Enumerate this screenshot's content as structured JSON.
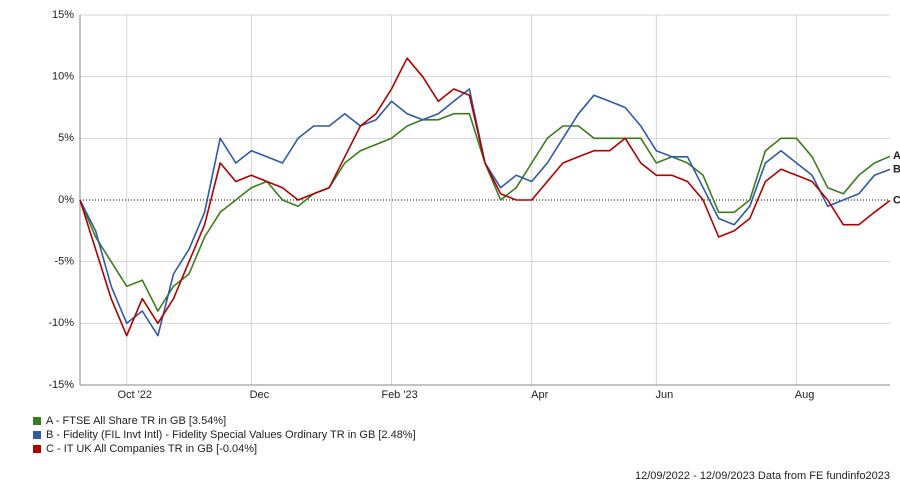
{
  "chart_data": {
    "type": "line",
    "categories": [
      null,
      null,
      null,
      "Oct '22",
      null,
      null,
      null,
      null,
      null,
      null,
      null,
      "Dec",
      null,
      null,
      null,
      null,
      null,
      null,
      null,
      null,
      "Feb '23",
      null,
      null,
      null,
      null,
      null,
      null,
      null,
      null,
      "Apr",
      null,
      null,
      null,
      null,
      null,
      null,
      null,
      "Jun",
      null,
      null,
      null,
      null,
      null,
      null,
      null,
      null,
      "Aug",
      null,
      null,
      null,
      null,
      null,
      null
    ],
    "series": [
      {
        "name": "A - FTSE All Share TR in GB [3.54%]",
        "end_label": "A",
        "color": "#3a7d1e",
        "values": [
          0,
          -3,
          -5,
          -7,
          -6.5,
          -9,
          -7,
          -6,
          -3,
          -1,
          0,
          1,
          1.5,
          0,
          -0.5,
          0.5,
          1,
          3,
          4,
          4.5,
          5,
          6,
          6.5,
          6.5,
          7,
          7,
          3,
          0,
          1,
          3,
          5,
          6,
          6,
          5,
          5,
          5,
          5,
          3,
          3.5,
          3,
          2,
          -1,
          -1,
          0,
          4,
          5,
          5,
          3.5,
          1,
          0.5,
          2,
          3,
          3.54
        ]
      },
      {
        "name": "B - Fidelity (FIL Invt Intl) - Fidelity Special Values Ordinary TR in GB [2.48%]",
        "end_label": "B",
        "color": "#2e5aa8",
        "values": [
          0,
          -2.5,
          -7,
          -10,
          -9,
          -11,
          -6,
          -4,
          -1,
          5,
          3,
          4,
          3.5,
          3,
          5,
          6,
          6,
          7,
          6,
          6.5,
          8,
          7,
          6.5,
          7,
          8,
          9,
          3,
          1,
          2,
          1.5,
          3,
          5,
          7,
          8.5,
          8,
          7.5,
          6,
          4,
          3.5,
          3.5,
          1,
          -1.5,
          -2,
          -0.5,
          3,
          4,
          3,
          2,
          -0.5,
          0,
          0.5,
          2,
          2.48
        ]
      },
      {
        "name": "C - IT UK All Companies TR in GB [-0.04%]",
        "end_label": "C",
        "color": "#b00000",
        "values": [
          0,
          -4,
          -8,
          -11,
          -8,
          -10,
          -8,
          -5,
          -2,
          3,
          1.5,
          2,
          1.5,
          1,
          0,
          0.5,
          1,
          3.5,
          6,
          7,
          9,
          11.5,
          10,
          8,
          9,
          8.5,
          3,
          0.5,
          0,
          0,
          1.5,
          3,
          3.5,
          4,
          4,
          5,
          3,
          2,
          2,
          1.5,
          0,
          -3,
          -2.5,
          -1.5,
          1.5,
          2.5,
          2,
          1.5,
          0,
          -2,
          -2,
          -1,
          -0.04
        ]
      }
    ],
    "ylim": [
      -15,
      15
    ],
    "yticks": [
      {
        "value": -15,
        "label": "-15%"
      },
      {
        "value": -10,
        "label": "-10%"
      },
      {
        "value": -5,
        "label": "-5%"
      },
      {
        "value": 0,
        "label": "0%"
      },
      {
        "value": 5,
        "label": "5%"
      },
      {
        "value": 10,
        "label": "10%"
      },
      {
        "value": 15,
        "label": "15%"
      }
    ],
    "grid": true,
    "footer": "12/09/2022 - 12/09/2023 Data from FE fundinfo2023"
  }
}
